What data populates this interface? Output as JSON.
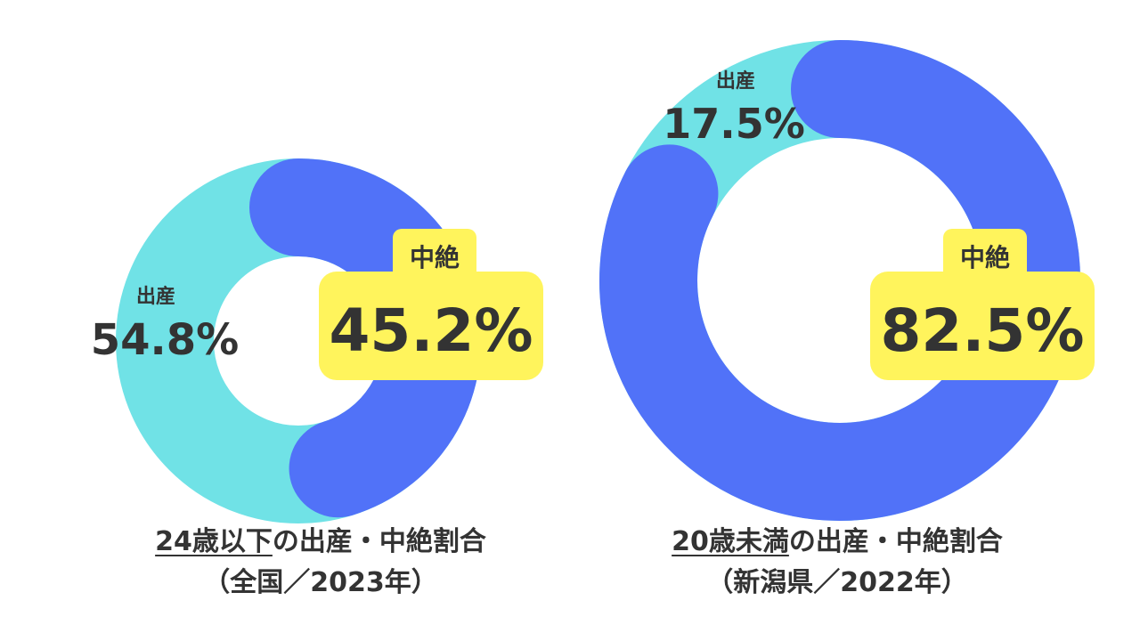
{
  "colors": {
    "birth": "#70E2E6",
    "abortion": "#5172F8",
    "badge": "#FFF45C",
    "text": "#333333"
  },
  "chart_data": [
    {
      "type": "pie",
      "donut": true,
      "categories": [
        "出産",
        "中絶"
      ],
      "values": [
        54.8,
        45.2
      ],
      "labels": {
        "birth_name": "出産",
        "birth_value": "54.8%",
        "abortion_name": "中絶",
        "abortion_value": "45.2%"
      },
      "caption": {
        "highlight": "24歳以下",
        "rest": "の出産・中絶割合",
        "line2": "（全国／2023年）"
      }
    },
    {
      "type": "pie",
      "donut": true,
      "categories": [
        "出産",
        "中絶"
      ],
      "values": [
        17.5,
        82.5
      ],
      "labels": {
        "birth_name": "出産",
        "birth_value": "17.5%",
        "abortion_name": "中絶",
        "abortion_value": "82.5%"
      },
      "caption": {
        "highlight": "20歳未満",
        "rest": "の出産・中絶割合",
        "line2": "（新潟県／2022年）"
      }
    }
  ]
}
